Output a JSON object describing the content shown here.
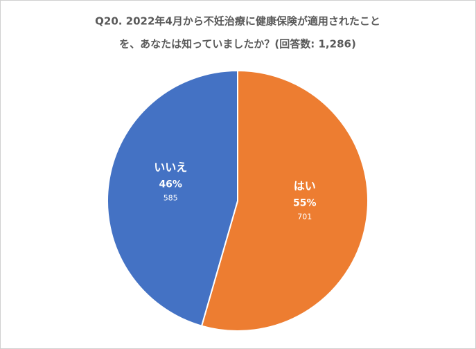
{
  "chart_data": {
    "type": "pie",
    "title": [
      "Q20. 2022年4月から不妊治療に健康保険が適用されたこと",
      "を、あなたは知っていましたか？(回答数: 1,286)"
    ],
    "categories": [
      "はい",
      "いいえ"
    ],
    "values": [
      55,
      46
    ],
    "value_labels": [
      "55%",
      "46%"
    ],
    "counts": [
      701,
      585
    ],
    "colors": [
      "#ed7d31",
      "#4472c4"
    ]
  }
}
